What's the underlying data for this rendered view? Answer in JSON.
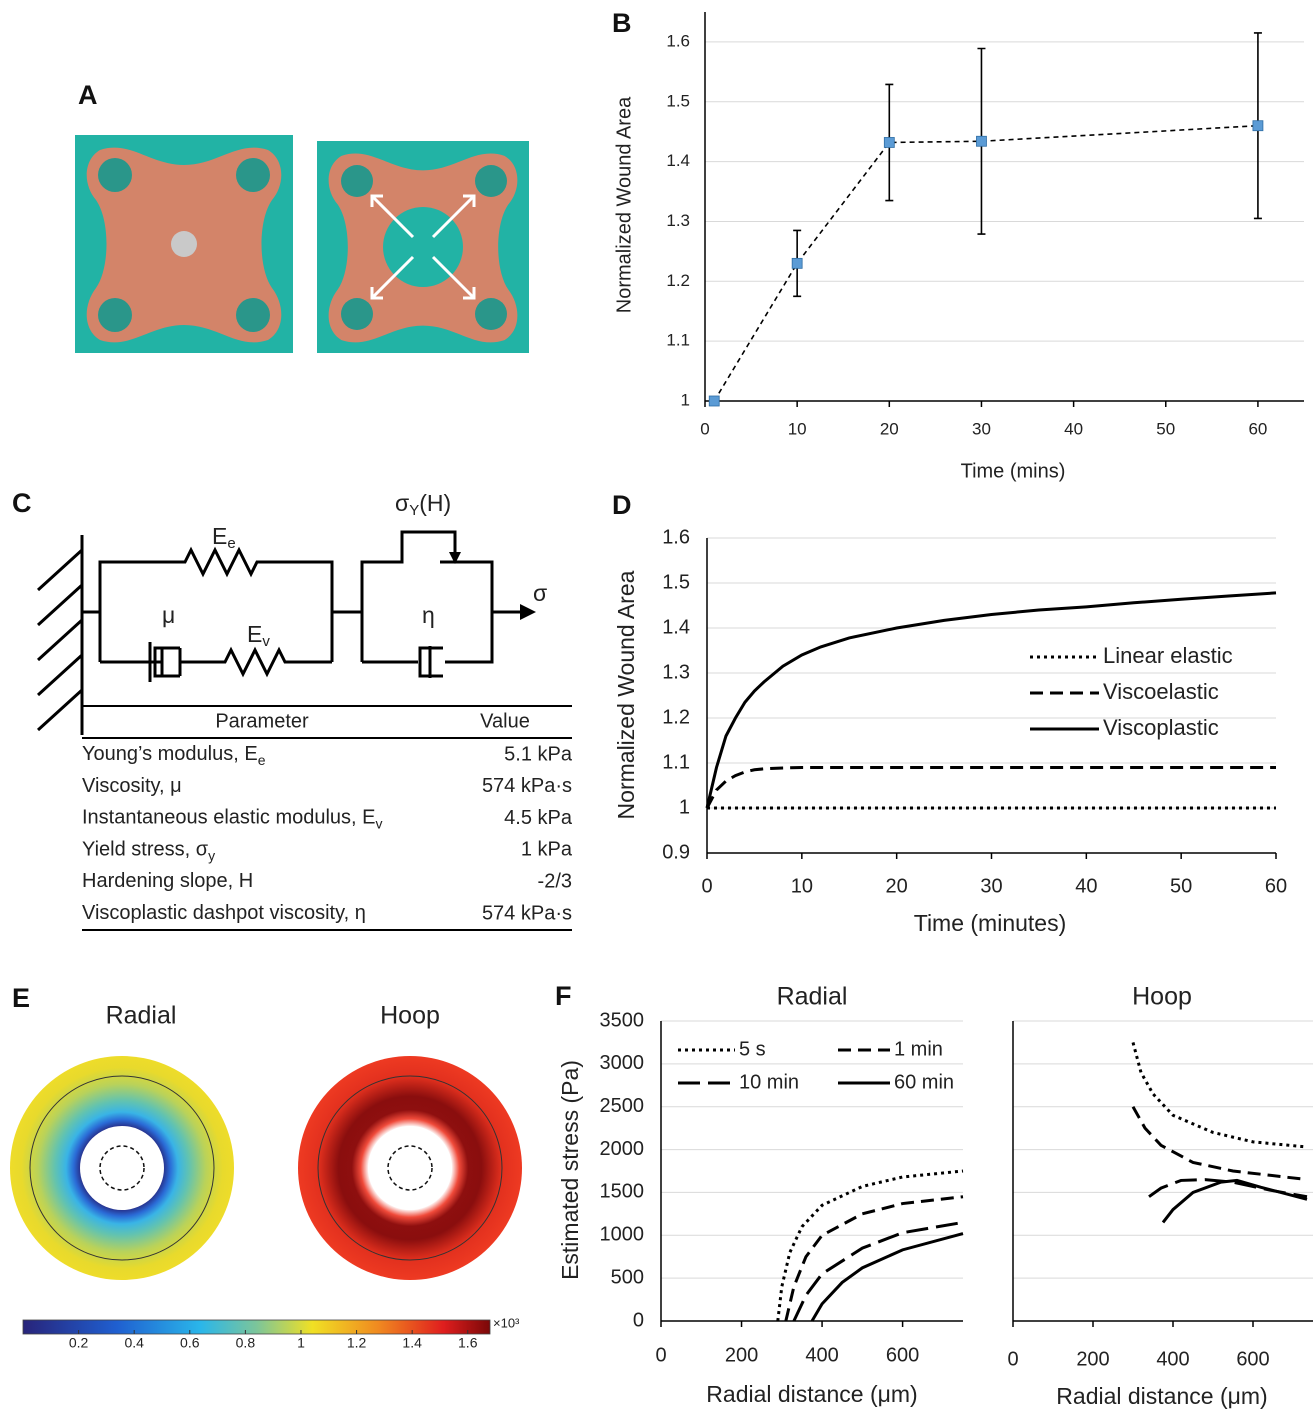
{
  "panel_labels": [
    "A",
    "B",
    "C",
    "D",
    "E",
    "F"
  ],
  "chart_data": [
    {
      "type": "line",
      "xlabel": "Time (mins)",
      "ylabel": "Normalized Wound Area",
      "x": [
        1,
        10,
        20,
        30,
        60
      ],
      "series": [
        {
          "color": "#5b9bd5",
          "line_color": "#000000",
          "dash": "dashed",
          "values": [
            1,
            1.23,
            1.432,
            1.434,
            1.46
          ],
          "errors": [
            0,
            0.055,
            0.097,
            0.155,
            0.155
          ]
        }
      ],
      "markers": true,
      "xlim": [
        0,
        65
      ],
      "xticks": [
        0,
        10,
        20,
        30,
        40,
        50,
        60
      ],
      "ylim": [
        1,
        1.65
      ],
      "yticks": [
        1,
        1.1,
        1.2,
        1.3,
        1.4,
        1.5,
        1.6
      ],
      "grid": true
    },
    {
      "type": "line",
      "xlabel": "Time (minutes)",
      "ylabel": "Normalized Wound Area",
      "x": [
        0,
        1,
        2,
        3,
        4,
        5,
        6,
        8,
        10,
        12,
        15,
        20,
        25,
        30,
        35,
        40,
        45,
        50,
        55,
        60
      ],
      "series": [
        {
          "name": "Linear elastic",
          "color": "#000000",
          "dash": "dotted",
          "values": [
            1,
            1,
            1,
            1,
            1,
            1,
            1,
            1,
            1,
            1,
            1,
            1,
            1,
            1,
            1,
            1,
            1,
            1,
            1,
            1
          ]
        },
        {
          "name": "Viscoelastic",
          "color": "#000000",
          "dash": "dashed",
          "values": [
            1,
            1.04,
            1.06,
            1.072,
            1.08,
            1.085,
            1.087,
            1.089,
            1.09,
            1.09,
            1.09,
            1.09,
            1.09,
            1.09,
            1.09,
            1.09,
            1.09,
            1.09,
            1.09,
            1.09
          ]
        },
        {
          "name": "Viscoplastic",
          "color": "#000000",
          "dash": "solid",
          "values": [
            1,
            1.09,
            1.16,
            1.2,
            1.235,
            1.26,
            1.28,
            1.315,
            1.34,
            1.358,
            1.378,
            1.4,
            1.417,
            1.43,
            1.44,
            1.447,
            1.456,
            1.464,
            1.471,
            1.478
          ]
        }
      ],
      "legend": "center right",
      "xlim": [
        0,
        60
      ],
      "xticks": [
        0,
        10,
        20,
        30,
        40,
        50,
        60
      ],
      "ylim": [
        0.9,
        1.6
      ],
      "yticks": [
        0.9,
        1,
        1.1,
        1.2,
        1.3,
        1.4,
        1.5,
        1.6
      ],
      "grid": true
    },
    {
      "type": "line",
      "title": "Radial",
      "xlabel": "Radial distance (μm)",
      "ylabel": "Estimated stress (Pa)",
      "series": [
        {
          "name": "5 s",
          "color": "#000000",
          "dash": "dotted",
          "x": [
            290,
            300,
            320,
            350,
            400,
            500,
            600,
            750
          ],
          "values": [
            0,
            400,
            800,
            1100,
            1350,
            1570,
            1680,
            1750
          ]
        },
        {
          "name": "1 min",
          "color": "#000000",
          "dash": "dashed",
          "x": [
            310,
            330,
            360,
            400,
            500,
            600,
            750
          ],
          "values": [
            0,
            400,
            750,
            1000,
            1250,
            1370,
            1450
          ]
        },
        {
          "name": "10 min",
          "color": "#000000",
          "dash": "longdash",
          "x": [
            330,
            360,
            400,
            500,
            600,
            750
          ],
          "values": [
            0,
            300,
            550,
            850,
            1030,
            1150
          ]
        },
        {
          "name": "60 min",
          "color": "#000000",
          "dash": "solid",
          "x": [
            375,
            400,
            450,
            500,
            600,
            750
          ],
          "values": [
            0,
            200,
            450,
            620,
            830,
            1020
          ]
        }
      ],
      "legend": "upper left",
      "xlim": [
        0,
        750
      ],
      "xticks": [
        0,
        200,
        400,
        600
      ],
      "ylim": [
        0,
        3500
      ],
      "yticks": [
        0,
        500,
        1000,
        1500,
        2000,
        2500,
        3000,
        3500
      ],
      "grid": true
    },
    {
      "type": "line",
      "title": "Hoop",
      "xlabel": "Radial distance (μm)",
      "series": [
        {
          "color": "#000000",
          "dash": "dotted",
          "x": [
            300,
            320,
            350,
            400,
            500,
            600,
            735
          ],
          "values": [
            3250,
            2900,
            2650,
            2400,
            2200,
            2090,
            2030
          ]
        },
        {
          "color": "#000000",
          "dash": "dashed",
          "x": [
            300,
            330,
            370,
            450,
            550,
            735
          ],
          "values": [
            2500,
            2250,
            2050,
            1850,
            1750,
            1650
          ]
        },
        {
          "color": "#000000",
          "dash": "longdash",
          "x": [
            340,
            370,
            420,
            480,
            550,
            650,
            735
          ],
          "values": [
            1450,
            1550,
            1640,
            1650,
            1620,
            1520,
            1450
          ]
        },
        {
          "color": "#000000",
          "dash": "solid",
          "x": [
            375,
            400,
            450,
            520,
            560,
            620,
            735
          ],
          "values": [
            1150,
            1300,
            1500,
            1620,
            1640,
            1560,
            1420
          ]
        }
      ],
      "xlim": [
        0,
        750
      ],
      "xticks": [
        0,
        200,
        400,
        600
      ],
      "ylim": [
        0,
        3500
      ],
      "yticks": [
        0,
        500,
        1000,
        1500,
        2000,
        2500,
        3000,
        3500
      ],
      "ytick_labels": false,
      "grid": true
    }
  ],
  "model": {
    "spring_e": {
      "base": "E",
      "sub": "e"
    },
    "dashpot_mu": "μ",
    "spring_v": {
      "base": "E",
      "sub": "v"
    },
    "yield": {
      "base": "σ",
      "sub": "Y",
      "tail": "(H)"
    },
    "dashpot_eta": "η",
    "stress": "σ"
  },
  "table": {
    "header": [
      "Parameter",
      "Value"
    ],
    "rows": [
      {
        "name": "Young’s modulus, E",
        "sub": "e",
        "value": "5.1 kPa"
      },
      {
        "name": "Viscosity, μ",
        "value": "574 kPa·s"
      },
      {
        "name": "Instantaneous elastic modulus, E",
        "sub": "v",
        "value": "4.5 kPa"
      },
      {
        "name": "Yield stress, σ",
        "sub": "y",
        "value": "1 kPa"
      },
      {
        "name": "Hardening slope, H",
        "value": "-2/3"
      },
      {
        "name": "Viscoplastic dashpot viscosity, η",
        "value": "574 kPa·s"
      }
    ]
  },
  "contours": {
    "titles": [
      "Radial",
      "Hoop"
    ],
    "colorbar": {
      "lim": [
        0,
        1.68
      ],
      "ticks": [
        0.2,
        0.4,
        0.6,
        0.8,
        1,
        1.2,
        1.4,
        1.6
      ],
      "multiplier": "×10³"
    }
  }
}
